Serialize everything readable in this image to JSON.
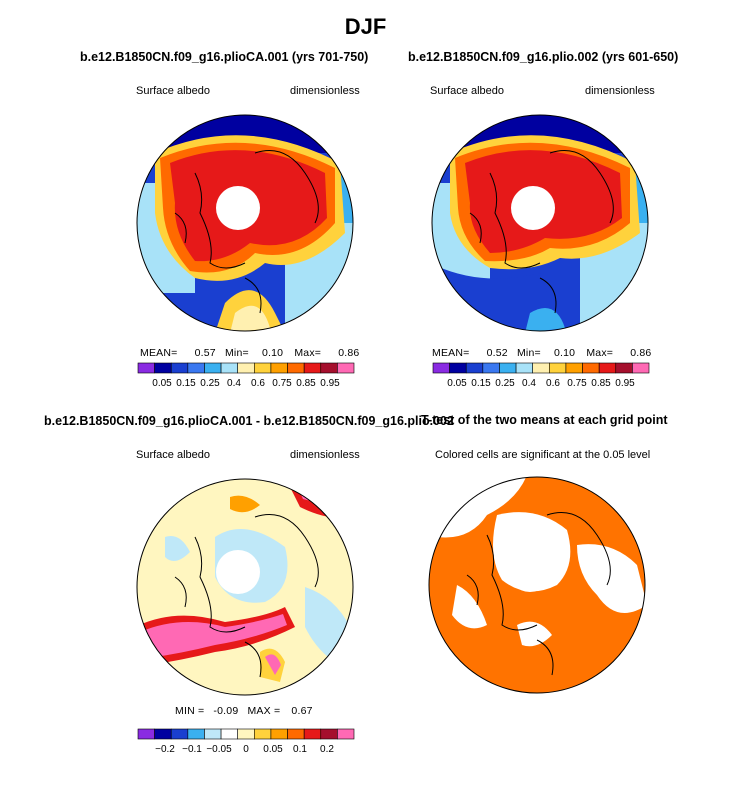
{
  "main_title": "DJF",
  "panels": [
    {
      "title": "b.e12.B1850CN.f09_g16.plioCA.001 (yrs 701-750)",
      "left_label": "Surface albedo",
      "right_label": "dimensionless",
      "stats": {
        "mean_label": "MEAN=",
        "mean": "0.57",
        "min_label": "Min=",
        "min": "0.10",
        "max_label": "Max=",
        "max": "0.86"
      },
      "colorbar": {
        "colors": [
          "#8a2be2",
          "#0000a0",
          "#1a3fd0",
          "#3a78f0",
          "#3ab0f0",
          "#a8e2f8",
          "#fff0b0",
          "#ffd23c",
          "#ffa000",
          "#ff6a00",
          "#e61919",
          "#a50f2d",
          "#ff69b4"
        ],
        "labels": [
          "0.05",
          "0.15",
          "0.25",
          "0.4",
          "0.6",
          "0.75",
          "0.85",
          "0.95"
        ]
      }
    },
    {
      "title": "b.e12.B1850CN.f09_g16.plio.002 (yrs 601-650)",
      "left_label": "Surface albedo",
      "right_label": "dimensionless",
      "stats": {
        "mean_label": "MEAN=",
        "mean": "0.52",
        "min_label": "Min=",
        "min": "0.10",
        "max_label": "Max=",
        "max": "0.86"
      },
      "colorbar": {
        "colors": [
          "#8a2be2",
          "#0000a0",
          "#1a3fd0",
          "#3a78f0",
          "#3ab0f0",
          "#a8e2f8",
          "#fff0b0",
          "#ffd23c",
          "#ffa000",
          "#ff6a00",
          "#e61919",
          "#a50f2d",
          "#ff69b4"
        ],
        "labels": [
          "0.05",
          "0.15",
          "0.25",
          "0.4",
          "0.6",
          "0.75",
          "0.85",
          "0.95"
        ]
      }
    },
    {
      "title": "b.e12.B1850CN.f09_g16.plioCA.001 - b.e12.B1850CN.f09_g16.plio.002",
      "left_label": "Surface albedo",
      "right_label": "dimensionless",
      "stats": {
        "min_label": "MIN =",
        "min": "-0.09",
        "max_label": "MAX =",
        "max": "0.67"
      },
      "colorbar": {
        "colors": [
          "#8a2be2",
          "#0000a0",
          "#1a3fd0",
          "#3ab0f0",
          "#bfe8f8",
          "#ffffff",
          "#fff6c0",
          "#ffd23c",
          "#ffa000",
          "#ff6a00",
          "#e61919",
          "#a50f2d",
          "#ff69b4"
        ],
        "labels": [
          "−0.2",
          "−0.1",
          "−0.05",
          "0",
          "0.05",
          "0.1",
          "0.2"
        ]
      }
    },
    {
      "title": "T-test of the two means at each grid point",
      "subtitle": "Colored cells are significant at the 0.05 level"
    }
  ]
}
